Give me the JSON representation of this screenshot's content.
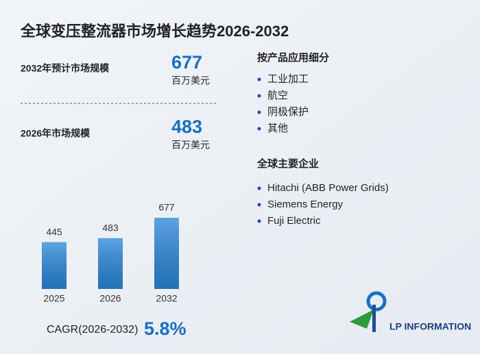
{
  "header": {
    "title": "全球变压整流器市场增长趋势2026-2032"
  },
  "stats": [
    {
      "label": "2032年预计市场规模",
      "value": "677",
      "unit": "百万美元"
    },
    {
      "label": "2026年市场规模",
      "value": "483",
      "unit": "百万美元"
    }
  ],
  "segments": {
    "title": "按产品应用细分",
    "items": [
      "工业加工",
      "航空",
      "阴极保护",
      "其他"
    ]
  },
  "companies": {
    "title": "全球主要企业",
    "items": [
      "Hitachi (ABB Power Grids)",
      "Siemens Energy",
      "Fuji Electric"
    ]
  },
  "cagr": {
    "label": "CAGR(2026-2032)",
    "value": "5.8%"
  },
  "logo": {
    "text": "LP INFORMATION"
  },
  "chart_data": {
    "type": "bar",
    "categories": [
      "2025",
      "2026",
      "2032"
    ],
    "values": [
      445,
      483,
      677
    ],
    "color": "#2a86d8"
  }
}
